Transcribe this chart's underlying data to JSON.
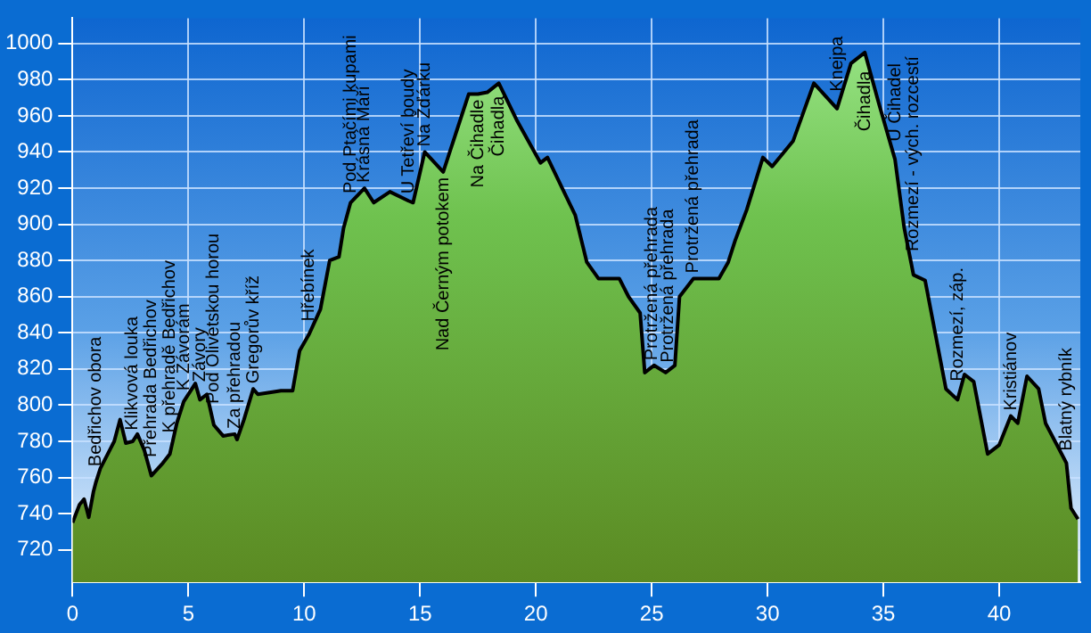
{
  "chart_data": {
    "type": "area",
    "color": "#000000",
    "x": [
      0,
      0.3,
      0.5,
      0.7,
      0.9,
      1.0,
      1.2,
      1.6,
      1.8,
      2.05,
      2.3,
      2.6,
      2.8,
      3.1,
      3.4,
      3.9,
      4.2,
      4.5,
      4.8,
      5.3,
      5.5,
      5.8,
      6.1,
      6.5,
      7.0,
      7.1,
      7.4,
      7.8,
      8.0,
      9.0,
      9.5,
      9.8,
      10.2,
      10.7,
      11.1,
      11.5,
      11.7,
      12.0,
      12.6,
      13.0,
      13.7,
      14.5,
      14.7,
      15.2,
      16.0,
      17.1,
      17.5,
      17.9,
      18.4,
      19.2,
      20.2,
      20.5,
      21.1,
      21.7,
      22.2,
      22.7,
      23.6,
      24.0,
      24.5,
      24.7,
      25.1,
      25.6,
      26.0,
      26.2,
      26.8,
      27.9,
      28.3,
      28.6,
      29.1,
      29.8,
      30.2,
      31.1,
      32.0,
      33.0,
      33.6,
      34.2,
      34.8,
      35.5,
      35.9,
      36.3,
      36.8,
      37.7,
      38.2,
      38.5,
      38.9,
      39.5,
      40.0,
      40.5,
      40.8,
      41.2,
      41.7,
      42.0,
      42.9,
      43.1,
      43.4
    ],
    "values": [
      735,
      745,
      748,
      738,
      752,
      757,
      765,
      775,
      780,
      792,
      779,
      780,
      784,
      775,
      761,
      768,
      773,
      790,
      802,
      812,
      803,
      806,
      789,
      783,
      784,
      781,
      792,
      809,
      806,
      808,
      808,
      830,
      839,
      853,
      880,
      882,
      898,
      912,
      920,
      912,
      918,
      913,
      912,
      940,
      929,
      972,
      972,
      973,
      978,
      957,
      934,
      937,
      921,
      905,
      879,
      870,
      870,
      860,
      851,
      818,
      822,
      818,
      822,
      860,
      870,
      870,
      879,
      891,
      908,
      937,
      932,
      946,
      978,
      964,
      989,
      995,
      967,
      936,
      898,
      872,
      869,
      809,
      803,
      817,
      813,
      773,
      778,
      794,
      790,
      816,
      809,
      790,
      768,
      743,
      737
    ],
    "xlim": [
      0,
      43.5
    ],
    "xticks": [
      0,
      5,
      10,
      15,
      20,
      25,
      30,
      35,
      40
    ],
    "ylim": [
      702,
      1014
    ],
    "yticks": [
      720,
      740,
      760,
      780,
      800,
      820,
      840,
      860,
      880,
      900,
      920,
      940,
      960,
      980,
      1000
    ],
    "grid": true,
    "legend": false,
    "marker": "none",
    "line_style": "solid",
    "annotations": [
      {
        "text": "Bedřichov obora",
        "x": 1.0,
        "y": 757
      },
      {
        "text": "Klikvová louka",
        "x": 2.6,
        "y": 780
      },
      {
        "text": "Přehrada Bedřichov",
        "x": 3.4,
        "y": 761
      },
      {
        "text": "K přehradě Bedřichov",
        "x": 4.2,
        "y": 773
      },
      {
        "text": "K Závorám",
        "x": 4.8,
        "y": 802
      },
      {
        "text": "Závory",
        "x": 5.5,
        "y": 803
      },
      {
        "text": "Pod Olivetskou horou",
        "x": 6.1,
        "y": 789
      },
      {
        "text": "Za přehradou",
        "x": 7.0,
        "y": 784
      },
      {
        "text": "Gregorův kříž",
        "x": 7.8,
        "y": 809
      },
      {
        "text": "Hřebínek",
        "x": 10.2,
        "y": 839
      },
      {
        "text": "Pod Ptačími kupami",
        "x": 12.0,
        "y": 912
      },
      {
        "text": "Krásná Máří",
        "x": 12.6,
        "y": 920
      },
      {
        "text": "U Tetřeví boudy",
        "x": 14.5,
        "y": 913
      },
      {
        "text": "Na Žďárku",
        "x": 15.2,
        "y": 940
      },
      {
        "text": "Nad Černým potokem",
        "x": 16.0,
        "y": 929
      },
      {
        "text": "Na Čihadle",
        "x": 17.5,
        "y": 972
      },
      {
        "text": "Čihadla",
        "x": 18.4,
        "y": 978
      },
      {
        "text": "Protržená přehrada",
        "x": 25.0,
        "y": 821
      },
      {
        "text": "Protržená přehrada",
        "x": 25.7,
        "y": 819
      },
      {
        "text": "Protržená přehrada",
        "x": 26.8,
        "y": 870
      },
      {
        "text": "Knejpa",
        "x": 33.0,
        "y": 964
      },
      {
        "text": "Čihadla",
        "x": 34.2,
        "y": 995
      },
      {
        "text": "U Čihadel",
        "x": 35.5,
        "y": 936
      },
      {
        "text": "Rozmezí - vých. rozcestí",
        "x": 36.3,
        "y": 872
      },
      {
        "text": "Rozmezí, záp.",
        "x": 38.2,
        "y": 803
      },
      {
        "text": "Kristiánov",
        "x": 40.5,
        "y": 794
      },
      {
        "text": "Blatný rybník",
        "x": 42.9,
        "y": 768
      }
    ]
  }
}
